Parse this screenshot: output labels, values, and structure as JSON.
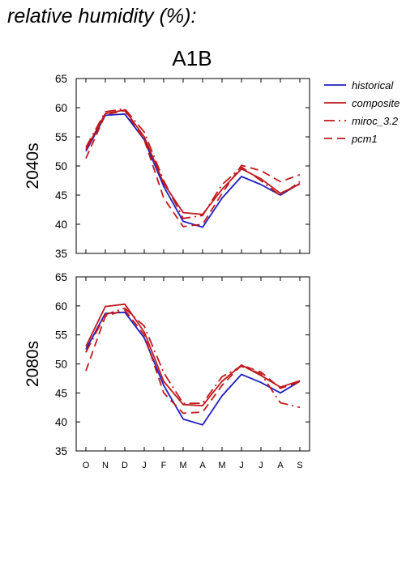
{
  "heading": "relative humidity (%):",
  "scenario": "A1B",
  "colors": {
    "historical": "#1f1fbf",
    "models": "#c0191c"
  },
  "legend": [
    {
      "label": "historical",
      "style": "solid"
    },
    {
      "label": "composite",
      "style": "solid"
    },
    {
      "label": "miroc_3.2",
      "style": "dashdot"
    },
    {
      "label": "pcm1",
      "style": "dashed"
    }
  ],
  "chart_data": [
    {
      "type": "line",
      "title": "A1B",
      "ylabel": "2040s",
      "ylim": [
        35,
        65
      ],
      "yticks": [
        35,
        40,
        45,
        50,
        55,
        60,
        65
      ],
      "categories": [
        "O",
        "N",
        "D",
        "J",
        "F",
        "M",
        "A",
        "M",
        "J",
        "J",
        "A",
        "S"
      ],
      "series": [
        {
          "name": "historical",
          "values": [
            52.5,
            58.7,
            58.9,
            54.5,
            46.5,
            40.5,
            39.5,
            44.5,
            48.2,
            46.8,
            45.0,
            47.0
          ]
        },
        {
          "name": "composite",
          "values": [
            52.8,
            59.0,
            59.6,
            55.0,
            47.0,
            42.0,
            41.7,
            46.0,
            49.5,
            47.8,
            45.3,
            46.9
          ]
        },
        {
          "name": "miroc_3.2",
          "values": [
            53.2,
            59.3,
            59.8,
            55.8,
            47.5,
            41.0,
            41.5,
            46.8,
            49.8,
            47.5,
            44.9,
            47.3
          ]
        },
        {
          "name": "pcm1",
          "values": [
            51.3,
            58.8,
            59.5,
            54.5,
            44.5,
            39.6,
            40.0,
            45.3,
            50.1,
            49.2,
            47.3,
            48.5
          ]
        }
      ]
    },
    {
      "type": "line",
      "title": "",
      "ylabel": "2080s",
      "ylim": [
        35,
        65
      ],
      "yticks": [
        35,
        40,
        45,
        50,
        55,
        60,
        65
      ],
      "categories": [
        "O",
        "N",
        "D",
        "J",
        "F",
        "M",
        "A",
        "M",
        "J",
        "J",
        "A",
        "S"
      ],
      "series": [
        {
          "name": "historical",
          "values": [
            52.5,
            58.7,
            58.9,
            54.5,
            46.3,
            40.5,
            39.5,
            44.5,
            48.2,
            46.8,
            45.0,
            47.0
          ]
        },
        {
          "name": "composite",
          "values": [
            53.0,
            59.9,
            60.3,
            55.5,
            47.0,
            43.0,
            42.8,
            47.0,
            49.8,
            48.0,
            46.0,
            47.1
          ]
        },
        {
          "name": "miroc_3.2",
          "values": [
            52.0,
            58.5,
            59.6,
            56.5,
            48.5,
            43.2,
            43.2,
            47.8,
            49.6,
            48.3,
            43.3,
            42.5
          ]
        },
        {
          "name": "pcm1",
          "values": [
            48.8,
            58.2,
            59.3,
            55.0,
            45.0,
            41.5,
            41.7,
            46.3,
            49.8,
            48.6,
            45.8,
            46.9
          ]
        }
      ]
    }
  ]
}
